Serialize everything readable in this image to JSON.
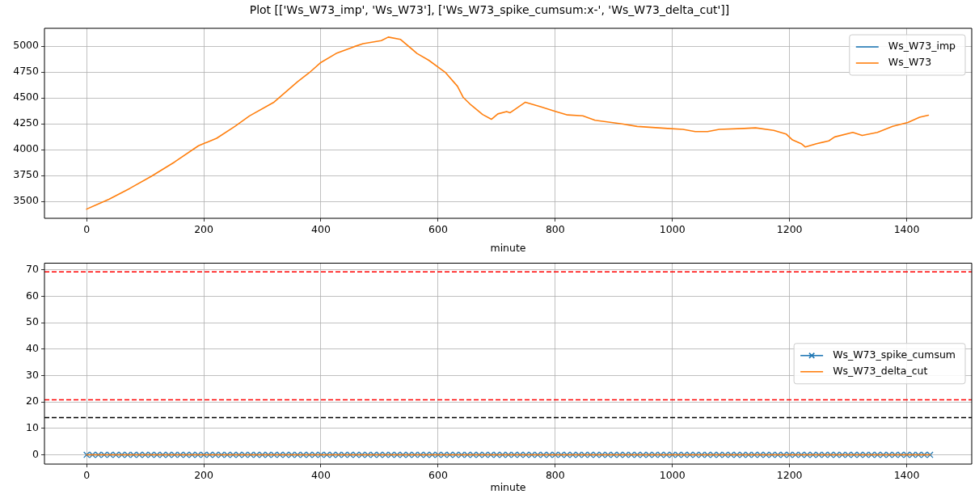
{
  "chart_data": [
    {
      "type": "line",
      "title": "Plot [['Ws_W73_imp', 'Ws_W73'], ['Ws_W73_spike_cumsum:x-', 'Ws_W73_delta_cut']]",
      "xlabel": "minute",
      "x": [
        0,
        38,
        74,
        110,
        150,
        191,
        222,
        253,
        278,
        319,
        360,
        380,
        400,
        426,
        457,
        472,
        503,
        515,
        536,
        564,
        584,
        612,
        633,
        643,
        656,
        676,
        691,
        702,
        717,
        723,
        749,
        775,
        800,
        821,
        847,
        868,
        914,
        940,
        992,
        1018,
        1039,
        1060,
        1080,
        1122,
        1142,
        1173,
        1194,
        1205,
        1220,
        1227,
        1246,
        1267,
        1277,
        1308,
        1324,
        1350,
        1376,
        1402,
        1422,
        1437
      ],
      "series": [
        {
          "name": "Ws_W73_imp",
          "color": "#1f77b4",
          "values": [
            null,
            null,
            null,
            null,
            null,
            null,
            null,
            null,
            null,
            null,
            null,
            null,
            null,
            null,
            null,
            null,
            null,
            null,
            null,
            null,
            null,
            null,
            null,
            null,
            null,
            null,
            null,
            null,
            null,
            null,
            null,
            null,
            null,
            null,
            null,
            null,
            null,
            null,
            null,
            null,
            null,
            null,
            null,
            null,
            null,
            null,
            null,
            null,
            null,
            null,
            null,
            null,
            null,
            null,
            null,
            null,
            null,
            null,
            null,
            null
          ]
        },
        {
          "name": "Ws_W73",
          "color": "#ff7f0e",
          "values": [
            3425,
            3520,
            3626,
            3741,
            3880,
            4038,
            4110,
            4225,
            4326,
            4456,
            4657,
            4744,
            4844,
            4931,
            4997,
            5026,
            5055,
            5089,
            5066,
            4931,
            4865,
            4749,
            4614,
            4505,
            4433,
            4340,
            4294,
            4346,
            4369,
            4357,
            4459,
            4415,
            4371,
            4336,
            4327,
            4284,
            4249,
            4225,
            4205,
            4196,
            4175,
            4175,
            4196,
            4205,
            4211,
            4187,
            4152,
            4094,
            4058,
            4026,
            4058,
            4085,
            4123,
            4167,
            4137,
            4167,
            4225,
            4263,
            4313,
            4333
          ]
        }
      ],
      "xlim": [
        -72,
        1511
      ],
      "xticks": [
        0,
        200,
        400,
        600,
        800,
        1000,
        1200,
        1400
      ],
      "ylim": [
        3336,
        5174
      ],
      "yticks": [
        3500,
        3750,
        4000,
        4250,
        4500,
        4750,
        5000
      ],
      "grid": true,
      "legend": "top right"
    },
    {
      "type": "line",
      "xlabel": "minute",
      "x": [
        0,
        10,
        20,
        30,
        40,
        50,
        60,
        70,
        80,
        90,
        100,
        110,
        120,
        130,
        140,
        150,
        160,
        170,
        180,
        190,
        200,
        210,
        220,
        230,
        240,
        250,
        260,
        270,
        280,
        290,
        300,
        310,
        320,
        330,
        340,
        350,
        360,
        370,
        380,
        390,
        400,
        410,
        420,
        430,
        440,
        450,
        460,
        470,
        480,
        490,
        500,
        510,
        520,
        530,
        540,
        550,
        560,
        570,
        580,
        590,
        600,
        610,
        620,
        630,
        640,
        650,
        660,
        670,
        680,
        690,
        700,
        710,
        720,
        730,
        740,
        750,
        760,
        770,
        780,
        790,
        800,
        810,
        820,
        830,
        840,
        850,
        860,
        870,
        880,
        890,
        900,
        910,
        920,
        930,
        940,
        950,
        960,
        970,
        980,
        990,
        1000,
        1010,
        1020,
        1030,
        1040,
        1050,
        1060,
        1070,
        1080,
        1090,
        1100,
        1110,
        1120,
        1130,
        1140,
        1150,
        1160,
        1170,
        1180,
        1190,
        1200,
        1210,
        1220,
        1230,
        1240,
        1250,
        1260,
        1270,
        1280,
        1290,
        1300,
        1310,
        1320,
        1330,
        1340,
        1350,
        1360,
        1370,
        1380,
        1390,
        1400,
        1410,
        1420,
        1430,
        1440
      ],
      "series": [
        {
          "name": "Ws_W73_spike_cumsum",
          "color": "#1f77b4",
          "marker": "cross",
          "values": [
            0,
            0,
            0,
            0,
            0,
            0,
            0,
            0,
            0,
            0,
            0,
            0,
            0,
            0,
            0,
            0,
            0,
            0,
            0,
            0,
            0,
            0,
            0,
            0,
            0,
            0,
            0,
            0,
            0,
            0,
            0,
            0,
            0,
            0,
            0,
            0,
            0,
            0,
            0,
            0,
            0,
            0,
            0,
            0,
            0,
            0,
            0,
            0,
            0,
            0,
            0,
            0,
            0,
            0,
            0,
            0,
            0,
            0,
            0,
            0,
            0,
            0,
            0,
            0,
            0,
            0,
            0,
            0,
            0,
            0,
            0,
            0,
            0,
            0,
            0,
            0,
            0,
            0,
            0,
            0,
            0,
            0,
            0,
            0,
            0,
            0,
            0,
            0,
            0,
            0,
            0,
            0,
            0,
            0,
            0,
            0,
            0,
            0,
            0,
            0,
            0,
            0,
            0,
            0,
            0,
            0,
            0,
            0,
            0,
            0,
            0,
            0,
            0,
            0,
            0,
            0,
            0,
            0,
            0,
            0,
            0,
            0,
            0,
            0,
            0,
            0,
            0,
            0,
            0,
            0,
            0,
            0,
            0,
            0,
            0,
            0,
            0,
            0,
            0,
            0,
            0,
            0,
            0,
            0,
            0
          ]
        },
        {
          "name": "Ws_W73_delta_cut",
          "color": "#ff7f0e",
          "values": [
            0,
            0,
            0,
            0,
            0,
            0,
            0,
            0,
            0,
            0,
            0,
            0,
            0,
            0,
            0,
            0,
            0,
            0,
            0,
            0,
            0,
            0,
            0,
            0,
            0,
            0,
            0,
            0,
            0,
            0,
            0,
            0,
            0,
            0,
            0,
            0,
            0,
            0,
            0,
            0,
            0,
            0,
            0,
            0,
            0,
            0,
            0,
            0,
            0,
            0,
            0,
            0,
            0,
            0,
            0,
            0,
            0,
            0,
            0,
            0,
            0,
            0,
            0,
            0,
            0,
            0,
            0,
            0,
            0,
            0,
            0,
            0,
            0,
            0,
            0,
            0,
            0,
            0,
            0,
            0,
            0,
            0,
            0,
            0,
            0,
            0,
            0,
            0,
            0,
            0,
            0,
            0,
            0,
            0,
            0,
            0,
            0,
            0,
            0,
            0,
            0,
            0,
            0,
            0,
            0,
            0,
            0,
            0,
            0,
            0,
            0,
            0,
            0,
            0,
            0,
            0,
            0,
            0,
            0,
            0,
            0,
            0,
            0,
            0,
            0,
            0,
            0,
            0,
            0,
            0,
            0,
            0,
            0,
            0,
            0,
            0,
            0,
            0,
            0,
            0,
            0,
            0,
            0,
            0,
            0
          ]
        }
      ],
      "xlim": [
        -72,
        1511
      ],
      "xticks": [
        0,
        200,
        400,
        600,
        800,
        1000,
        1200,
        1400
      ],
      "ylim": [
        -3.5,
        72.5
      ],
      "yticks": [
        0,
        10,
        20,
        30,
        40,
        50,
        60,
        70
      ],
      "ref_lines": [
        {
          "axis": "y",
          "value": 69.2,
          "color": "#ff0000",
          "line_style": "dashed"
        },
        {
          "axis": "y",
          "value": 20.8,
          "color": "#ff0000",
          "line_style": "dashed"
        },
        {
          "axis": "y",
          "value": 14.1,
          "color": "#000000",
          "line_style": "dashed"
        }
      ],
      "grid": true,
      "legend": "right"
    }
  ]
}
